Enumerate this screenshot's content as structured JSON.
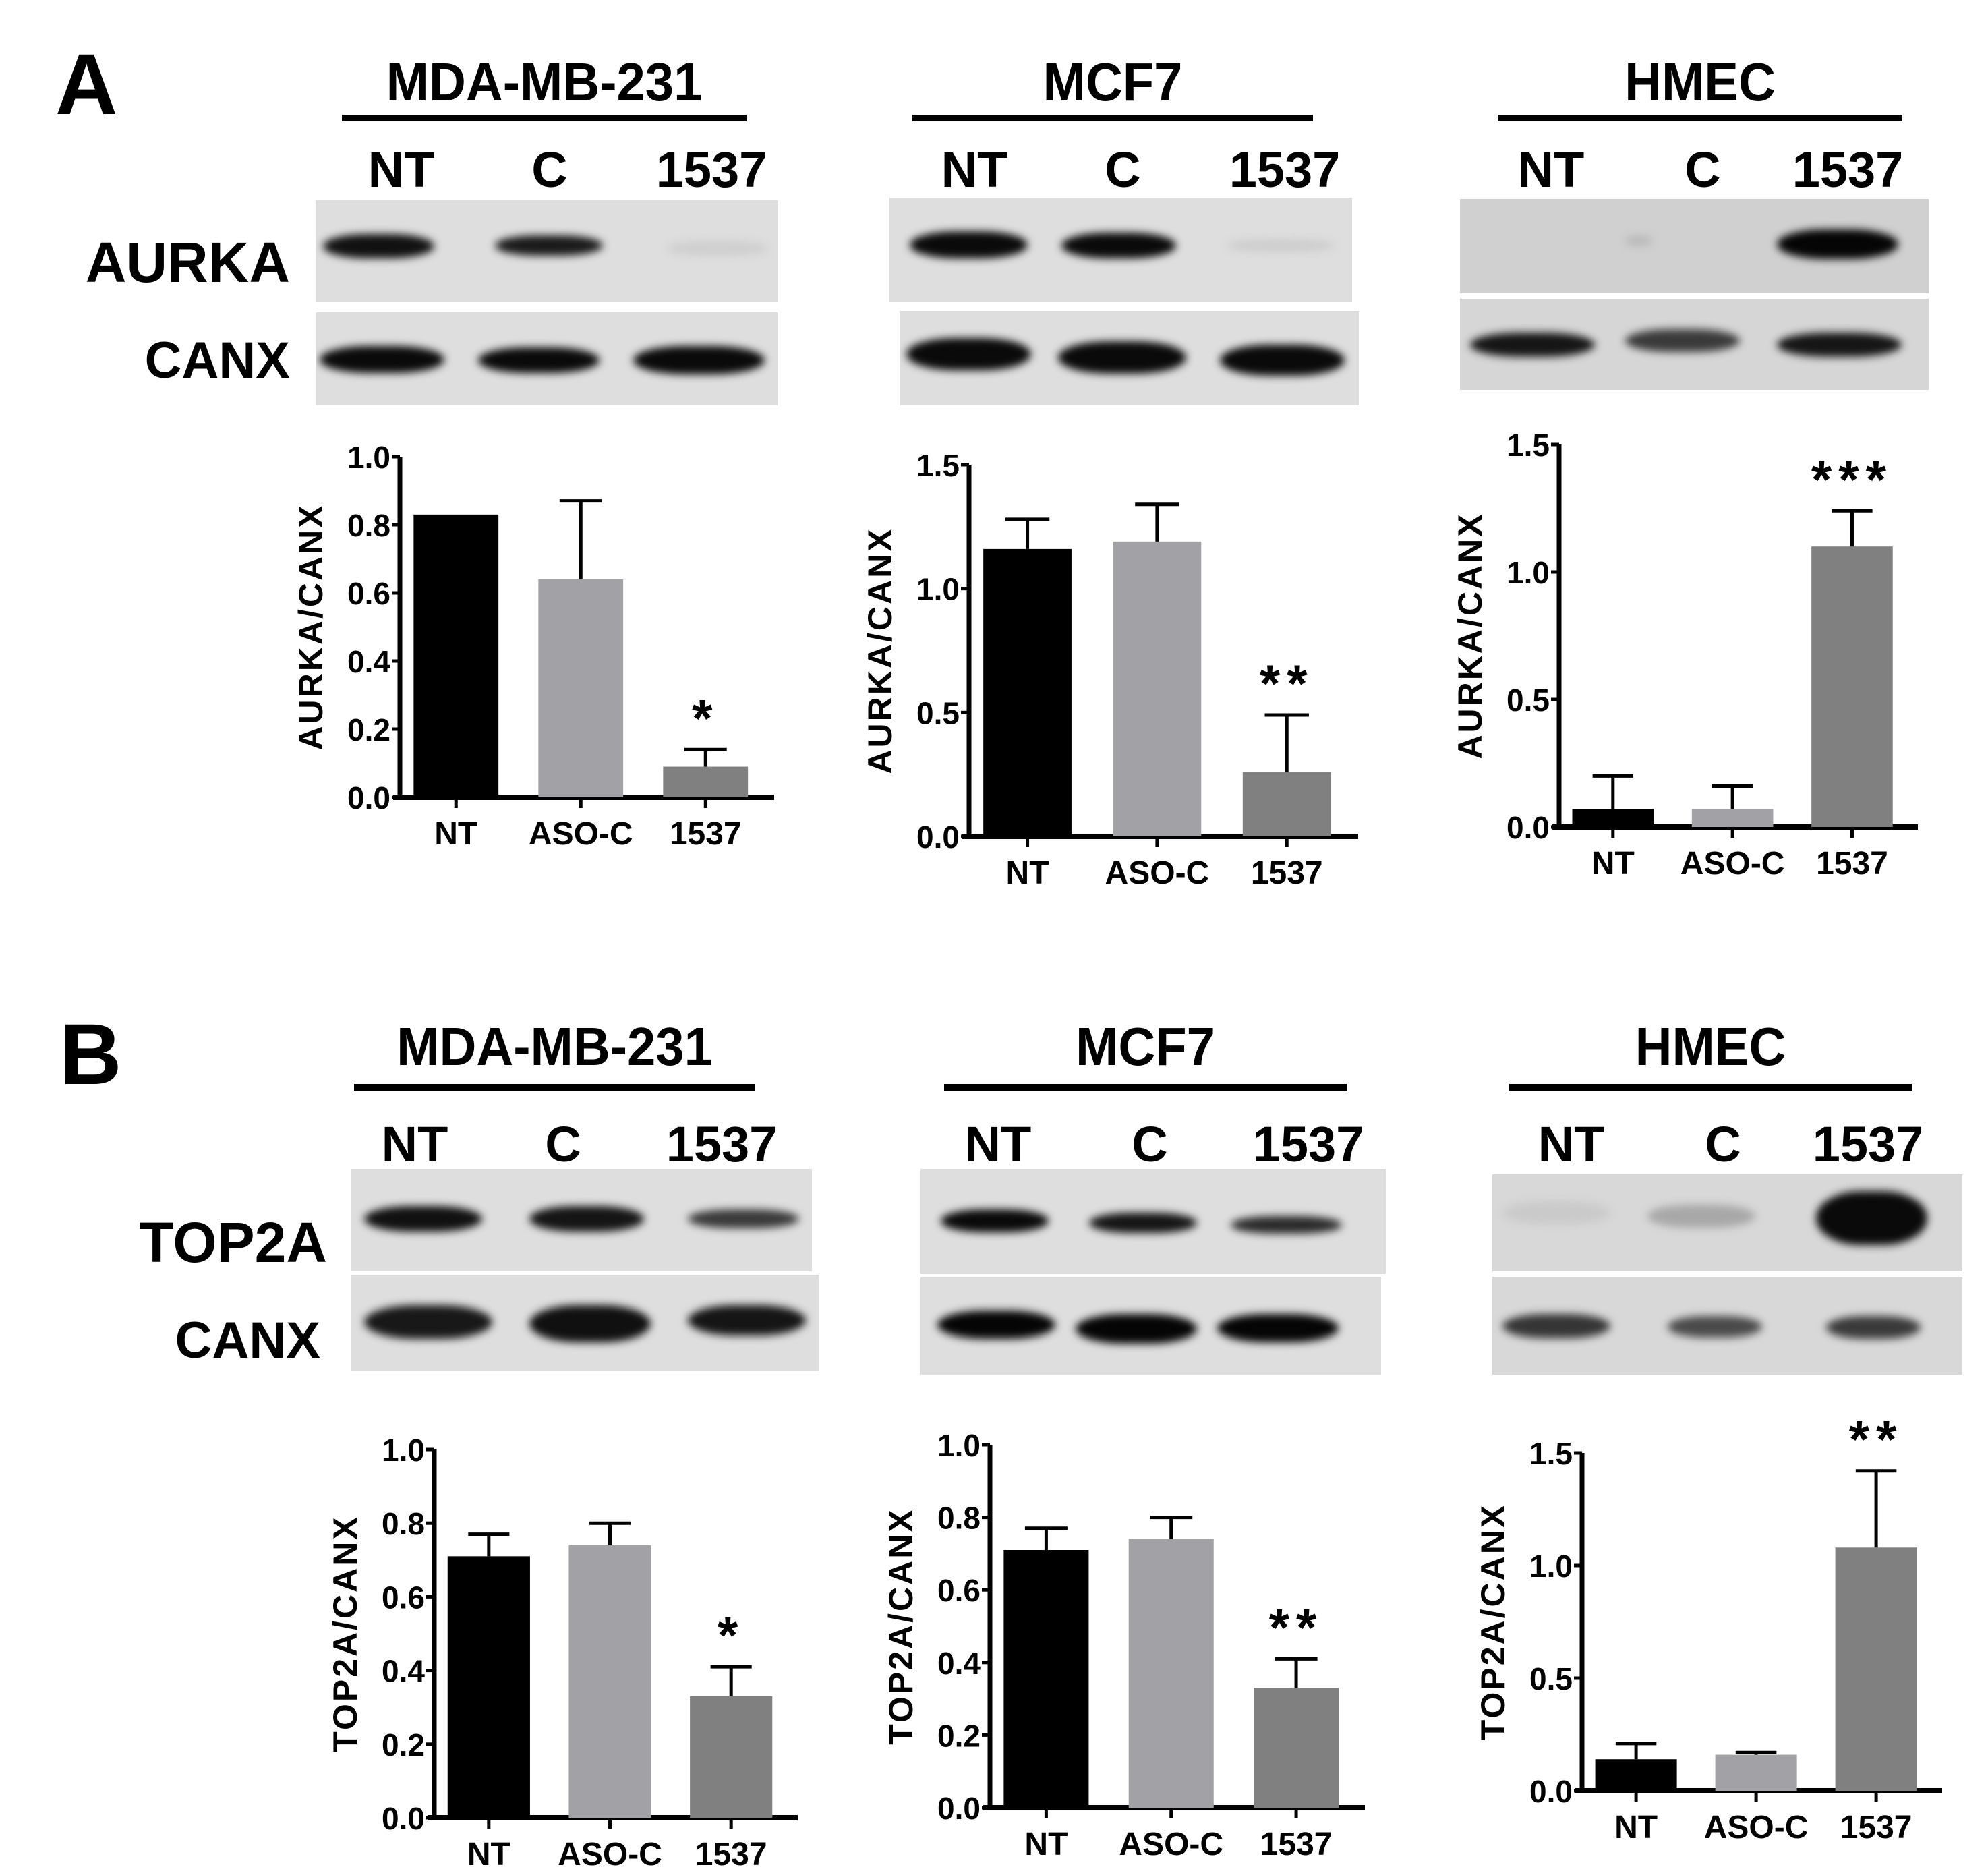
{
  "panels": [
    {
      "letter": "A",
      "protein": "AURKA",
      "loading_control": "CANX",
      "cells": [
        {
          "title": "MDA-MB-231",
          "lanes": [
            "NT",
            "C",
            "1537"
          ]
        },
        {
          "title": "MCF7",
          "lanes": [
            "NT",
            "C",
            "1537"
          ]
        },
        {
          "title": "HMEC",
          "lanes": [
            "NT",
            "C",
            "1537"
          ]
        }
      ]
    },
    {
      "letter": "B",
      "protein": "TOP2A",
      "loading_control": "CANX",
      "cells": [
        {
          "title": "MDA-MB-231",
          "lanes": [
            "NT",
            "C",
            "1537"
          ]
        },
        {
          "title": "MCF7",
          "lanes": [
            "NT",
            "C",
            "1537"
          ]
        },
        {
          "title": "HMEC",
          "lanes": [
            "NT",
            "C",
            "1537"
          ]
        }
      ]
    }
  ],
  "colors": {
    "NT": "#000000",
    "ASO-C": "#a1a1a6",
    "1537": "#808080",
    "blot_bg": "#dedede"
  },
  "chart_data": [
    {
      "id": "A-MDA-MB-231",
      "type": "bar",
      "title": "",
      "categories": [
        "NT",
        "ASO-C",
        "1537"
      ],
      "values": [
        0.83,
        0.64,
        0.09
      ],
      "error_upper": [
        0.83,
        0.87,
        0.14
      ],
      "significance": [
        "",
        "",
        "*"
      ],
      "xlabel": "",
      "ylabel": "AURKA/CANX",
      "ylim": [
        0,
        1.0
      ],
      "yticks": [
        "0.0",
        "0.2",
        "0.4",
        "0.6",
        "0.8",
        "1.0"
      ],
      "grid": false
    },
    {
      "id": "A-MCF7",
      "type": "bar",
      "title": "",
      "categories": [
        "NT",
        "ASO-C",
        "1537"
      ],
      "values": [
        1.16,
        1.19,
        0.26
      ],
      "error_upper": [
        1.28,
        1.34,
        0.49
      ],
      "significance": [
        "",
        "",
        "**"
      ],
      "xlabel": "",
      "ylabel": "AURKA/CANX",
      "ylim": [
        0,
        1.5
      ],
      "yticks": [
        "0.0",
        "0.5",
        "1.0",
        "1.5"
      ],
      "grid": false
    },
    {
      "id": "A-HMEC",
      "type": "bar",
      "title": "",
      "categories": [
        "NT",
        "ASO-C",
        "1537"
      ],
      "values": [
        0.07,
        0.07,
        1.1
      ],
      "error_upper": [
        0.2,
        0.16,
        1.24
      ],
      "significance": [
        "",
        "",
        "***"
      ],
      "xlabel": "",
      "ylabel": "AURKA/CANX",
      "ylim": [
        0,
        1.5
      ],
      "yticks": [
        "0.0",
        "0.5",
        "1.0",
        "1.5"
      ],
      "grid": false
    },
    {
      "id": "B-MDA-MB-231",
      "type": "bar",
      "title": "",
      "categories": [
        "NT",
        "ASO-C",
        "1537"
      ],
      "values": [
        0.71,
        0.74,
        0.33
      ],
      "error_upper": [
        0.77,
        0.8,
        0.41
      ],
      "significance": [
        "",
        "",
        "*"
      ],
      "xlabel": "",
      "ylabel": "TOP2A/CANX",
      "ylim": [
        0,
        1.0
      ],
      "yticks": [
        "0.0",
        "0.2",
        "0.4",
        "0.6",
        "0.8",
        "1.0"
      ],
      "grid": false
    },
    {
      "id": "B-MCF7",
      "type": "bar",
      "title": "",
      "categories": [
        "NT",
        "ASO-C",
        "1537"
      ],
      "values": [
        0.71,
        0.74,
        0.33
      ],
      "error_upper": [
        0.77,
        0.8,
        0.41
      ],
      "significance": [
        "",
        "",
        "**"
      ],
      "xlabel": "",
      "ylabel": "TOP2A/CANX",
      "ylim": [
        0,
        1.0
      ],
      "yticks": [
        "0.0",
        "0.2",
        "0.4",
        "0.6",
        "0.8",
        "1.0"
      ],
      "grid": false
    },
    {
      "id": "B-HMEC",
      "type": "bar",
      "title": "",
      "categories": [
        "NT",
        "ASO-C",
        "1537"
      ],
      "values": [
        0.14,
        0.16,
        1.08
      ],
      "error_upper": [
        0.21,
        0.17,
        1.42
      ],
      "significance": [
        "",
        "",
        "**"
      ],
      "xlabel": "",
      "ylabel": "TOP2A/CANX",
      "ylim": [
        0,
        1.5
      ],
      "yticks": [
        "0.0",
        "0.5",
        "1.0",
        "1.5"
      ],
      "grid": false
    }
  ]
}
